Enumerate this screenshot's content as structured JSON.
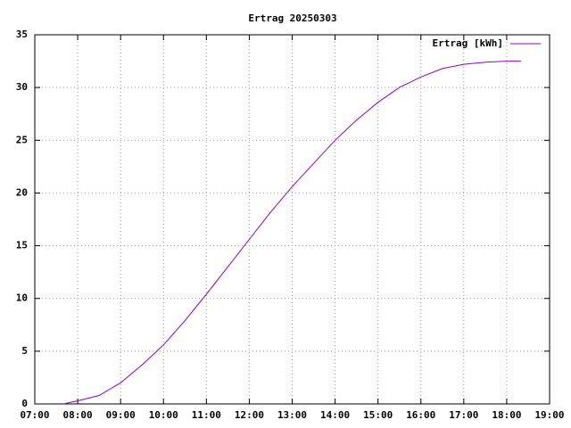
{
  "chart_data": {
    "type": "line",
    "title": "Ertrag 20250303",
    "x": [
      "07:40",
      "08:00",
      "08:30",
      "09:00",
      "09:30",
      "10:00",
      "10:30",
      "11:00",
      "11:30",
      "12:00",
      "12:30",
      "13:00",
      "13:30",
      "14:00",
      "14:30",
      "15:00",
      "15:30",
      "16:00",
      "16:30",
      "17:00",
      "17:30",
      "18:00",
      "18:20"
    ],
    "series": [
      {
        "name": "Ertrag [kWh]",
        "color": "#9400d3",
        "values": [
          0,
          0.3,
          0.8,
          2.0,
          3.7,
          5.6,
          7.9,
          10.4,
          13.0,
          15.6,
          18.2,
          20.6,
          22.8,
          25.0,
          26.9,
          28.6,
          30.0,
          31.0,
          31.8,
          32.2,
          32.4,
          32.5,
          32.5
        ]
      }
    ],
    "xlim": [
      "07:00",
      "19:00"
    ],
    "xticks": [
      "07:00",
      "08:00",
      "09:00",
      "10:00",
      "11:00",
      "12:00",
      "13:00",
      "14:00",
      "15:00",
      "16:00",
      "17:00",
      "18:00",
      "19:00"
    ],
    "ylim": [
      0,
      35
    ],
    "yticks": [
      0,
      5,
      10,
      15,
      20,
      25,
      30,
      35
    ],
    "grid": true,
    "legend": "top-right"
  }
}
